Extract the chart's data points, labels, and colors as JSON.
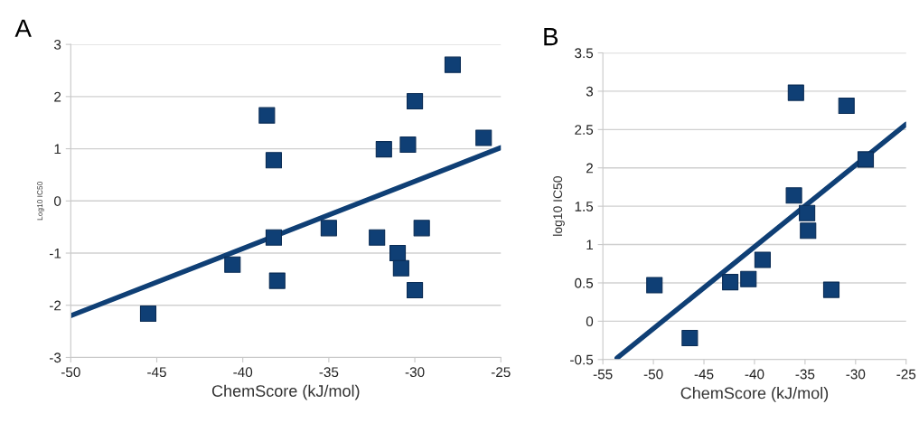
{
  "chart_data": [
    {
      "type": "scatter",
      "title": "A",
      "xlabel": "ChemScore (kJ/mol)",
      "ylabel": "Log10 IC50",
      "grid": "y",
      "xlim": [
        -50,
        -25
      ],
      "xticks": [
        -50,
        -45,
        -40,
        -35,
        -30,
        -25
      ],
      "ylim": [
        -3,
        3
      ],
      "yticks": [
        -3,
        -2,
        -1,
        0,
        1,
        2,
        3
      ],
      "series": [
        {
          "marker": "square",
          "color": "#0f3f75",
          "x": [
            -38.6,
            -38.2,
            -31.8,
            -30.4,
            -30.0,
            -27.8,
            -26.0,
            -35.0,
            -38.2,
            -32.2,
            -29.6,
            -31.0,
            -30.8,
            -30.0,
            -40.6,
            -38.0,
            -45.5
          ],
          "values": [
            1.64,
            0.78,
            0.99,
            1.08,
            1.91,
            2.61,
            1.21,
            -0.52,
            -0.7,
            -0.7,
            -0.52,
            -1.0,
            -1.29,
            -1.71,
            -1.22,
            -1.53,
            -2.16
          ]
        },
        {
          "type": "line",
          "color": "#0f3f75",
          "x": [
            -50,
            -25
          ],
          "values": [
            -2.2,
            1.02
          ]
        }
      ]
    },
    {
      "type": "scatter",
      "title": "B",
      "xlabel": "ChemScore (kJ/mol)",
      "ylabel": "log10 IC50",
      "grid": "y",
      "xlim": [
        -55,
        -25
      ],
      "xticks": [
        -55,
        -50,
        -45,
        -40,
        -35,
        -30,
        -25
      ],
      "ylim": [
        -0.5,
        3.5
      ],
      "yticks": [
        -0.5,
        0,
        0.5,
        1,
        1.5,
        2,
        2.5,
        3,
        3.5
      ],
      "series": [
        {
          "marker": "square",
          "color": "#0f3f75",
          "x": [
            -35.9,
            -30.9,
            -29.0,
            -36.1,
            -34.8,
            -34.7,
            -39.2,
            -40.6,
            -42.4,
            -49.9,
            -32.4,
            -46.4
          ],
          "values": [
            2.98,
            2.81,
            2.11,
            1.64,
            1.41,
            1.18,
            0.8,
            0.55,
            0.51,
            0.47,
            0.41,
            -0.22
          ]
        },
        {
          "type": "line",
          "color": "#0f3f75",
          "x": [
            -53.6,
            -25
          ],
          "values": [
            -0.48,
            2.57
          ]
        }
      ]
    }
  ]
}
